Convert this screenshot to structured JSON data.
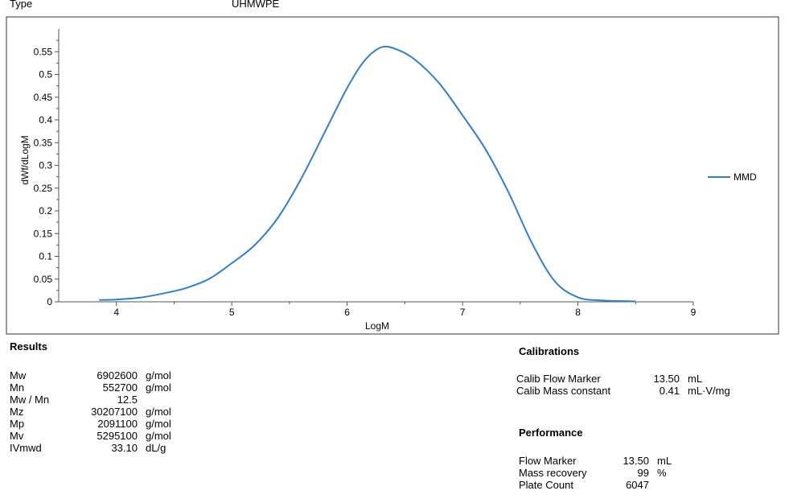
{
  "header": {
    "type_label": "Type",
    "type_value": "UHMWPE"
  },
  "chart_data": {
    "type": "line",
    "xlabel": "LogM",
    "ylabel": "dWf/dLogM",
    "xlim": [
      3.5,
      9
    ],
    "ylim": [
      0,
      0.6
    ],
    "x_ticks": [
      "4",
      "5",
      "6",
      "7",
      "8",
      "9"
    ],
    "y_ticks": [
      "0",
      "0.05",
      "0.1",
      "0.15",
      "0.2",
      "0.25",
      "0.3",
      "0.35",
      "0.4",
      "0.45",
      "0.5",
      "0.55"
    ],
    "grid": false,
    "legend_position": "right",
    "series": [
      {
        "name": "MMD",
        "color": "#2f7fd1",
        "points": [
          [
            3.85,
            0.004
          ],
          [
            4.0,
            0.005
          ],
          [
            4.2,
            0.009
          ],
          [
            4.4,
            0.018
          ],
          [
            4.6,
            0.03
          ],
          [
            4.8,
            0.05
          ],
          [
            5.0,
            0.085
          ],
          [
            5.2,
            0.125
          ],
          [
            5.4,
            0.185
          ],
          [
            5.6,
            0.27
          ],
          [
            5.8,
            0.37
          ],
          [
            6.0,
            0.47
          ],
          [
            6.15,
            0.53
          ],
          [
            6.3,
            0.56
          ],
          [
            6.45,
            0.553
          ],
          [
            6.6,
            0.53
          ],
          [
            6.8,
            0.48
          ],
          [
            7.0,
            0.41
          ],
          [
            7.2,
            0.335
          ],
          [
            7.4,
            0.24
          ],
          [
            7.6,
            0.13
          ],
          [
            7.8,
            0.045
          ],
          [
            8.0,
            0.01
          ],
          [
            8.2,
            0.003
          ],
          [
            8.5,
            0.001
          ]
        ]
      }
    ]
  },
  "results": {
    "title": "Results",
    "rows": [
      {
        "label": "Mw",
        "value": "6902600",
        "unit": "g/mol"
      },
      {
        "label": "Mn",
        "value": "552700",
        "unit": "g/mol"
      },
      {
        "label": "Mw / Mn",
        "value": "12.5",
        "unit": ""
      },
      {
        "label": "Mz",
        "value": "30207100",
        "unit": "g/mol"
      },
      {
        "label": "Mp",
        "value": "2091100",
        "unit": "g/mol"
      },
      {
        "label": "Mv",
        "value": "5295100",
        "unit": "g/mol"
      },
      {
        "label": "IVmwd",
        "value": "33.10",
        "unit": "dL/g"
      }
    ]
  },
  "calibrations": {
    "title": "Calibrations",
    "rows": [
      {
        "label": "Calib Flow Marker",
        "value": "13.50",
        "unit": "mL"
      },
      {
        "label": "Calib Mass constant",
        "value": "0.41",
        "unit": "mL·V/mg"
      }
    ]
  },
  "performance": {
    "title": "Performance",
    "rows": [
      {
        "label": "Flow Marker",
        "value": "13.50",
        "unit": "mL"
      },
      {
        "label": "Mass recovery",
        "value": "99",
        "unit": "%"
      },
      {
        "label": "Plate Count",
        "value": "6047",
        "unit": ""
      }
    ]
  }
}
